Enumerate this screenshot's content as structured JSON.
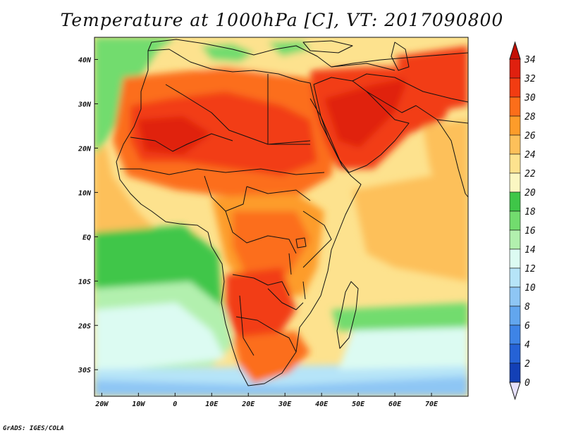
{
  "title": "Temperature at 1000hPa [C], VT: 2017090800",
  "credit": "GrADS: IGES/COLA",
  "map": {
    "lon_range": [
      -22,
      80
    ],
    "lat_range": [
      -36,
      45
    ],
    "lon_ticks": [
      {
        "value": -20,
        "label": "20W"
      },
      {
        "value": -10,
        "label": "10W"
      },
      {
        "value": 0,
        "label": "0"
      },
      {
        "value": 10,
        "label": "10E"
      },
      {
        "value": 20,
        "label": "20E"
      },
      {
        "value": 30,
        "label": "30E"
      },
      {
        "value": 40,
        "label": "40E"
      },
      {
        "value": 50,
        "label": "50E"
      },
      {
        "value": 60,
        "label": "60E"
      },
      {
        "value": 70,
        "label": "70E"
      }
    ],
    "lat_ticks": [
      {
        "value": 40,
        "label": "40N"
      },
      {
        "value": 30,
        "label": "30N"
      },
      {
        "value": 20,
        "label": "20N"
      },
      {
        "value": 10,
        "label": "10N"
      },
      {
        "value": 0,
        "label": "EQ"
      },
      {
        "value": -10,
        "label": "10S"
      },
      {
        "value": -20,
        "label": "20S"
      },
      {
        "value": -30,
        "label": "30S"
      }
    ]
  },
  "colorbar": {
    "levels": [
      {
        "label": "34",
        "color": "#e0200f"
      },
      {
        "label": "32",
        "color": "#f23c12"
      },
      {
        "label": "30",
        "color": "#fc6e1a"
      },
      {
        "label": "28",
        "color": "#fd9c2a"
      },
      {
        "label": "26",
        "color": "#fdc05a"
      },
      {
        "label": "24",
        "color": "#fde28e"
      },
      {
        "label": "22",
        "color": "#fbf7c2"
      },
      {
        "label": "20",
        "color": "#3fc648"
      },
      {
        "label": "18",
        "color": "#72dc6e"
      },
      {
        "label": "16",
        "color": "#b2f0ae"
      },
      {
        "label": "14",
        "color": "#dcfbf2"
      },
      {
        "label": "12",
        "color": "#b6e4f8"
      },
      {
        "label": "10",
        "color": "#8ec6f4"
      },
      {
        "label": "8",
        "color": "#62a6ee"
      },
      {
        "label": "6",
        "color": "#3e84e6"
      },
      {
        "label": "4",
        "color": "#2562d6"
      },
      {
        "label": "2",
        "color": "#1340b6"
      },
      {
        "label": "0",
        "color": "#0a2080"
      }
    ],
    "above_max_color": "#c41005",
    "below_min_color": "#e6e0fa"
  }
}
